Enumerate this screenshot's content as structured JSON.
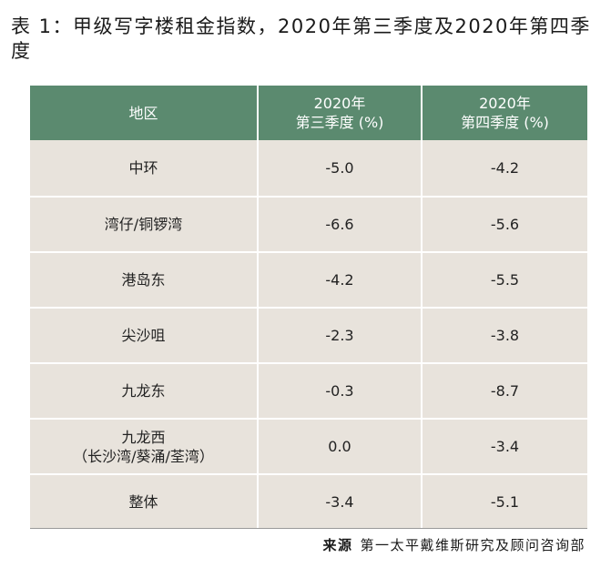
{
  "title": "表 1：甲级写字楼租金指数，2020年第三季度及2020年第四季度",
  "table": {
    "headers": {
      "district": "地区",
      "q3_line1": "2020年",
      "q3_line2": "第三季度 (%)",
      "q4_line1": "2020年",
      "q4_line2": "第四季度 (%)"
    },
    "rows": [
      {
        "district": "中环",
        "district_line2": "",
        "q3": "-5.0",
        "q4": "-4.2"
      },
      {
        "district": "湾仔/铜锣湾",
        "district_line2": "",
        "q3": "-6.6",
        "q4": "-5.6"
      },
      {
        "district": "港岛东",
        "district_line2": "",
        "q3": "-4.2",
        "q4": "-5.5"
      },
      {
        "district": "尖沙咀",
        "district_line2": "",
        "q3": "-2.3",
        "q4": "-3.8"
      },
      {
        "district": "九龙东",
        "district_line2": "",
        "q3": "-0.3",
        "q4": "-8.7"
      },
      {
        "district": "九龙西",
        "district_line2": "（长沙湾/葵涌/荃湾）",
        "q3": "0.0",
        "q4": "-3.4"
      },
      {
        "district": "整体",
        "district_line2": "",
        "q3": "-3.4",
        "q4": "-5.1"
      }
    ]
  },
  "source": {
    "label": "来源",
    "text": "第一太平戴维斯研究及顾问咨询部"
  },
  "colors": {
    "header_bg": "#5b8a6f",
    "cell_bg": "#e8e3dc"
  }
}
